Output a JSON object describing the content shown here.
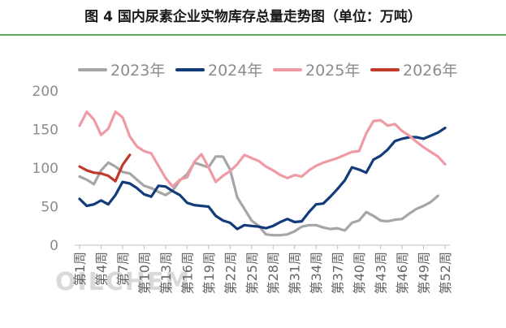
{
  "title": "图 4 国内尿素企业实物库存总量走势图（单位：万吨）",
  "watermark": "OILCHEM",
  "colors": {
    "title_rule": "#5fae5f",
    "s2023": "#a6a6a6",
    "s2024": "#123b7a",
    "s2025": "#ef9aa4",
    "s2026": "#c0392b"
  },
  "chart_data": {
    "type": "line",
    "ylim": [
      0,
      200
    ],
    "yticks": [
      0,
      50,
      100,
      150,
      200
    ],
    "grid": false,
    "legend_position": "top",
    "x_tick_labels": [
      "第1周",
      "第4周",
      "第7周",
      "第10周",
      "第13周",
      "第16周",
      "第19周",
      "第22周",
      "第25周",
      "第28周",
      "第31周",
      "第34周",
      "第37周",
      "第40周",
      "第43周",
      "第46周",
      "第49周",
      "第52周"
    ],
    "x_tick_weeks": [
      1,
      4,
      7,
      10,
      13,
      16,
      19,
      22,
      25,
      28,
      31,
      34,
      37,
      40,
      43,
      46,
      49,
      52
    ],
    "weeks_total": 52,
    "series": [
      {
        "name": "2023年",
        "color_key": "s2023",
        "values": [
          89,
          85,
          79,
          97,
          107,
          102,
          95,
          93,
          85,
          77,
          74,
          69,
          65,
          71,
          84,
          92,
          107,
          104,
          101,
          115,
          115,
          98,
          62,
          47,
          32,
          25,
          14,
          13,
          13,
          14,
          18,
          24,
          26,
          26,
          23,
          21,
          22,
          19,
          29,
          32,
          43,
          38,
          32,
          31,
          33,
          34,
          41,
          47,
          51,
          56,
          64,
          null
        ]
      },
      {
        "name": "2024年",
        "color_key": "s2024",
        "values": [
          60,
          51,
          53,
          58,
          53,
          65,
          82,
          80,
          74,
          66,
          63,
          77,
          76,
          70,
          65,
          55,
          52,
          51,
          50,
          38,
          32,
          29,
          21,
          26,
          25,
          24,
          22,
          25,
          30,
          34,
          30,
          31,
          43,
          53,
          54,
          63,
          73,
          84,
          101,
          98,
          94,
          111,
          116,
          124,
          135,
          138,
          140,
          140,
          138,
          142,
          146,
          152
        ]
      },
      {
        "name": "2025年",
        "color_key": "s2025",
        "values": [
          155,
          173,
          163,
          143,
          151,
          173,
          166,
          141,
          128,
          122,
          119,
          103,
          87,
          76,
          85,
          88,
          108,
          118,
          101,
          82,
          90,
          96,
          105,
          117,
          113,
          109,
          102,
          97,
          91,
          87,
          91,
          89,
          97,
          103,
          107,
          110,
          113,
          117,
          121,
          122,
          145,
          161,
          162,
          155,
          157,
          148,
          142,
          134,
          127,
          121,
          115,
          105
        ]
      },
      {
        "name": "2026年",
        "color_key": "s2026",
        "values": [
          102,
          97,
          94,
          93,
          90,
          83,
          104,
          117,
          null,
          null,
          null,
          null,
          null,
          null,
          null,
          null,
          null,
          null,
          null,
          null,
          null,
          null,
          null,
          null,
          null,
          null,
          null,
          null,
          null,
          null,
          null,
          null,
          null,
          null,
          null,
          null,
          null,
          null,
          null,
          null,
          null,
          null,
          null,
          null,
          null,
          null,
          null,
          null,
          null,
          null,
          null,
          null
        ]
      }
    ]
  }
}
